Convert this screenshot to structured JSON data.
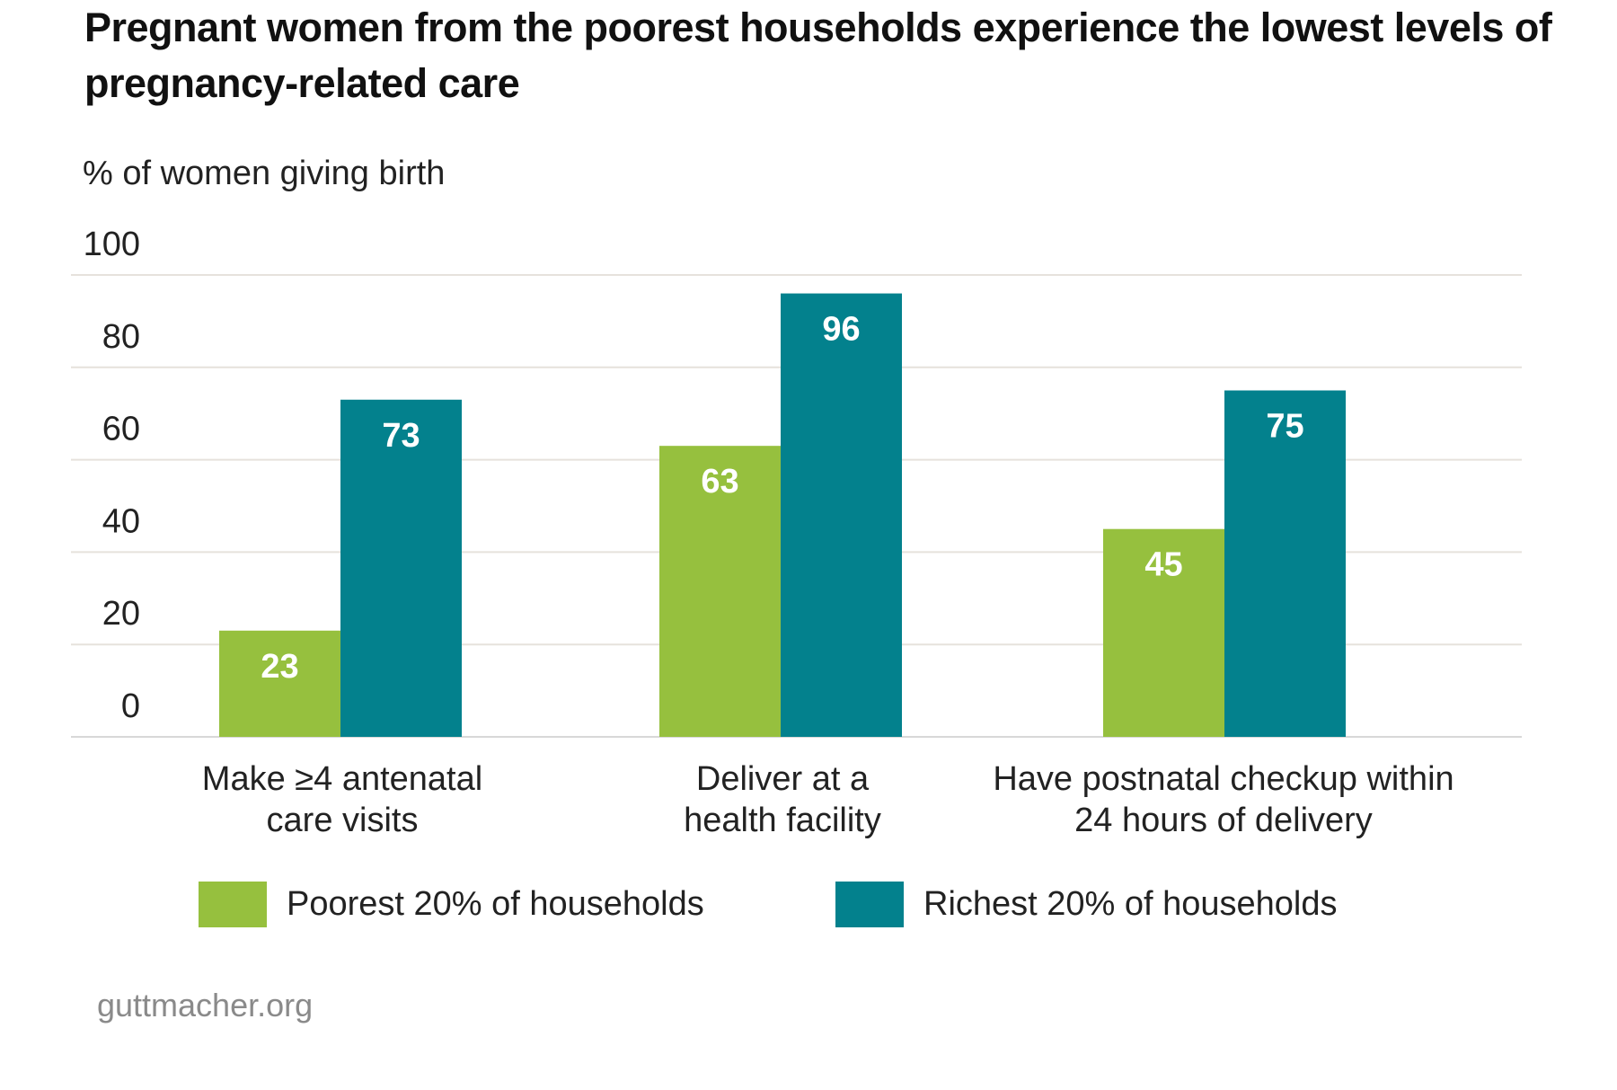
{
  "chart_data": {
    "type": "bar",
    "title": "Pregnant women from the poorest households experience the lowest levels of pregnancy-related care",
    "ylabel": "% of women giving birth",
    "xlabel": "",
    "ylim": [
      0,
      100
    ],
    "yticks": [
      0,
      20,
      40,
      60,
      80,
      100
    ],
    "grid": true,
    "legend_position": "bottom",
    "categories": [
      [
        "Make ≥4 antenatal",
        "care visits"
      ],
      [
        "Deliver at a",
        "health facility"
      ],
      [
        "Have postnatal checkup within",
        "24 hours of delivery"
      ]
    ],
    "series": [
      {
        "name": "Poorest 20% of households",
        "color": "#96c03e",
        "values": [
          23,
          63,
          45
        ]
      },
      {
        "name": "Richest 20% of households",
        "color": "#03818d",
        "values": [
          73,
          96,
          75
        ]
      }
    ]
  },
  "footer": "guttmacher.org"
}
